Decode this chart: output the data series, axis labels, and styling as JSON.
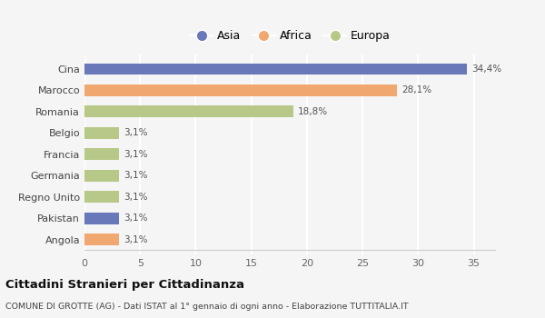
{
  "categories": [
    "Angola",
    "Pakistan",
    "Regno Unito",
    "Germania",
    "Francia",
    "Belgio",
    "Romania",
    "Marocco",
    "Cina"
  ],
  "values": [
    3.1,
    3.1,
    3.1,
    3.1,
    3.1,
    3.1,
    18.8,
    28.1,
    34.4
  ],
  "labels": [
    "3,1%",
    "3,1%",
    "3,1%",
    "3,1%",
    "3,1%",
    "3,1%",
    "18,8%",
    "28,1%",
    "34,4%"
  ],
  "colors": [
    "#f0a870",
    "#6878b8",
    "#b8c888",
    "#b8c888",
    "#b8c888",
    "#b8c888",
    "#b8c888",
    "#f0a870",
    "#6878b8"
  ],
  "legend_labels": [
    "Asia",
    "Africa",
    "Europa"
  ],
  "legend_colors": [
    "#6878b8",
    "#f0a870",
    "#b8c888"
  ],
  "title": "Cittadini Stranieri per Cittadinanza",
  "subtitle": "COMUNE DI GROTTE (AG) - Dati ISTAT al 1° gennaio di ogni anno - Elaborazione TUTTITALIA.IT",
  "xlim": [
    0,
    37
  ],
  "xticks": [
    0,
    5,
    10,
    15,
    20,
    25,
    30,
    35
  ],
  "background_color": "#f5f5f5",
  "grid_color": "#ffffff",
  "bar_height": 0.55
}
